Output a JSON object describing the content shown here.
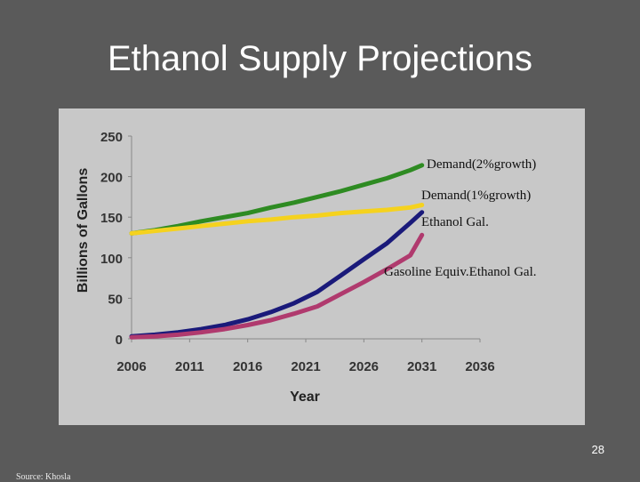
{
  "slide": {
    "title": "Ethanol Supply Projections",
    "page_number": "28",
    "source": "Source: Khosla"
  },
  "chart_data": {
    "type": "line",
    "xlabel": "Year",
    "ylabel": "Billions of Gallons",
    "xlim": [
      2006,
      2036
    ],
    "ylim": [
      0,
      250
    ],
    "x_ticks": [
      2006,
      2011,
      2016,
      2021,
      2026,
      2031,
      2036
    ],
    "y_ticks": [
      0,
      50,
      100,
      150,
      200,
      250
    ],
    "grid": false,
    "legend": "inline labels",
    "series": [
      {
        "name": "Demand(2%growth)",
        "color": "#2e8b22",
        "x": [
          2006,
          2008,
          2010,
          2012,
          2014,
          2016,
          2018,
          2020,
          2022,
          2024,
          2026,
          2028,
          2030,
          2031
        ],
        "values": [
          130,
          134,
          139,
          145,
          150,
          155,
          162,
          168,
          175,
          182,
          190,
          198,
          208,
          214
        ]
      },
      {
        "name": "Demand(1%growth)",
        "color": "#f5d21e",
        "x": [
          2006,
          2008,
          2010,
          2012,
          2014,
          2016,
          2018,
          2020,
          2022,
          2024,
          2026,
          2028,
          2030,
          2031
        ],
        "values": [
          130,
          133,
          136,
          139,
          142,
          145,
          147,
          150,
          152,
          155,
          157,
          159,
          162,
          165
        ]
      },
      {
        "name": "Ethanol Gal.",
        "color": "#1a1a7a",
        "x": [
          2006,
          2008,
          2010,
          2012,
          2014,
          2016,
          2018,
          2020,
          2022,
          2024,
          2026,
          2028,
          2030,
          2031
        ],
        "values": [
          3,
          5,
          8,
          12,
          17,
          24,
          33,
          44,
          58,
          78,
          98,
          118,
          143,
          156
        ]
      },
      {
        "name": "Gasoline Equiv.Ethanol Gal.",
        "color": "#b03a6e",
        "x": [
          2006,
          2008,
          2010,
          2012,
          2014,
          2016,
          2018,
          2020,
          2022,
          2024,
          2026,
          2028,
          2030,
          2031
        ],
        "values": [
          2,
          3,
          5,
          8,
          12,
          17,
          23,
          31,
          40,
          55,
          70,
          86,
          103,
          128
        ]
      }
    ],
    "annotations": [
      {
        "text": "Demand(2%growth)",
        "series": 0
      },
      {
        "text": "Demand(1%growth)",
        "series": 1
      },
      {
        "text": "Ethanol Gal.",
        "series": 2
      },
      {
        "text": "Gasoline Equiv.Ethanol Gal.",
        "series": 3
      }
    ]
  }
}
